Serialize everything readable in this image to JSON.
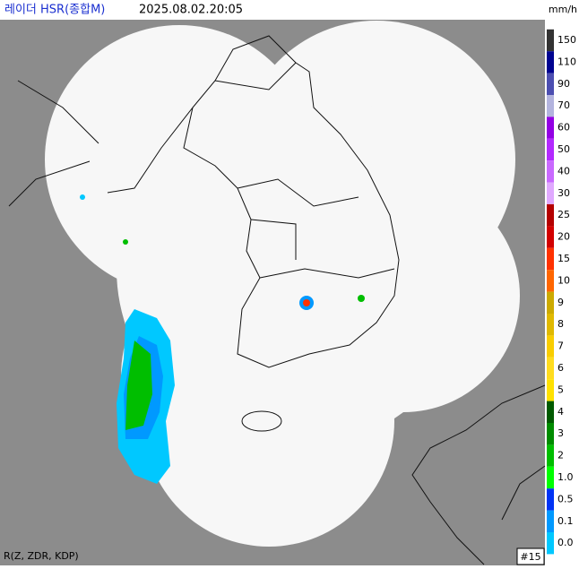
{
  "header": {
    "title": "레이더 HSR(종합M)",
    "timestamp": "2025.08.02.20:05",
    "unit": "mm/h"
  },
  "legend": [
    {
      "label": "150",
      "color": "#333333"
    },
    {
      "label": "110",
      "color": "#000390"
    },
    {
      "label": "90",
      "color": "#4c4eb1"
    },
    {
      "label": "70",
      "color": "#b3b4de"
    },
    {
      "label": "60",
      "color": "#9300e4"
    },
    {
      "label": "50",
      "color": "#b329ff"
    },
    {
      "label": "40",
      "color": "#c969ff"
    },
    {
      "label": "30",
      "color": "#e0a9ff"
    },
    {
      "label": "25",
      "color": "#b40000"
    },
    {
      "label": "20",
      "color": "#d20000"
    },
    {
      "label": "15",
      "color": "#ff3200"
    },
    {
      "label": "10",
      "color": "#ff6600"
    },
    {
      "label": "9",
      "color": "#ccaa00"
    },
    {
      "label": "8",
      "color": "#e0b900"
    },
    {
      "label": "7",
      "color": "#f9cd00"
    },
    {
      "label": "6",
      "color": "#ffdc1f"
    },
    {
      "label": "5",
      "color": "#ffe100"
    },
    {
      "label": "4",
      "color": "#005a00"
    },
    {
      "label": "3",
      "color": "#008c00"
    },
    {
      "label": "2",
      "color": "#00be00"
    },
    {
      "label": "1.0",
      "color": "#00ff00"
    },
    {
      "label": "0.5",
      "color": "#0033f5"
    },
    {
      "label": "0.1",
      "color": "#0099ff"
    },
    {
      "label": "0.0",
      "color": "#00c8ff"
    }
  ],
  "footer": {
    "variables": "R(Z, ZDR, KDP)",
    "frame": "#15"
  }
}
